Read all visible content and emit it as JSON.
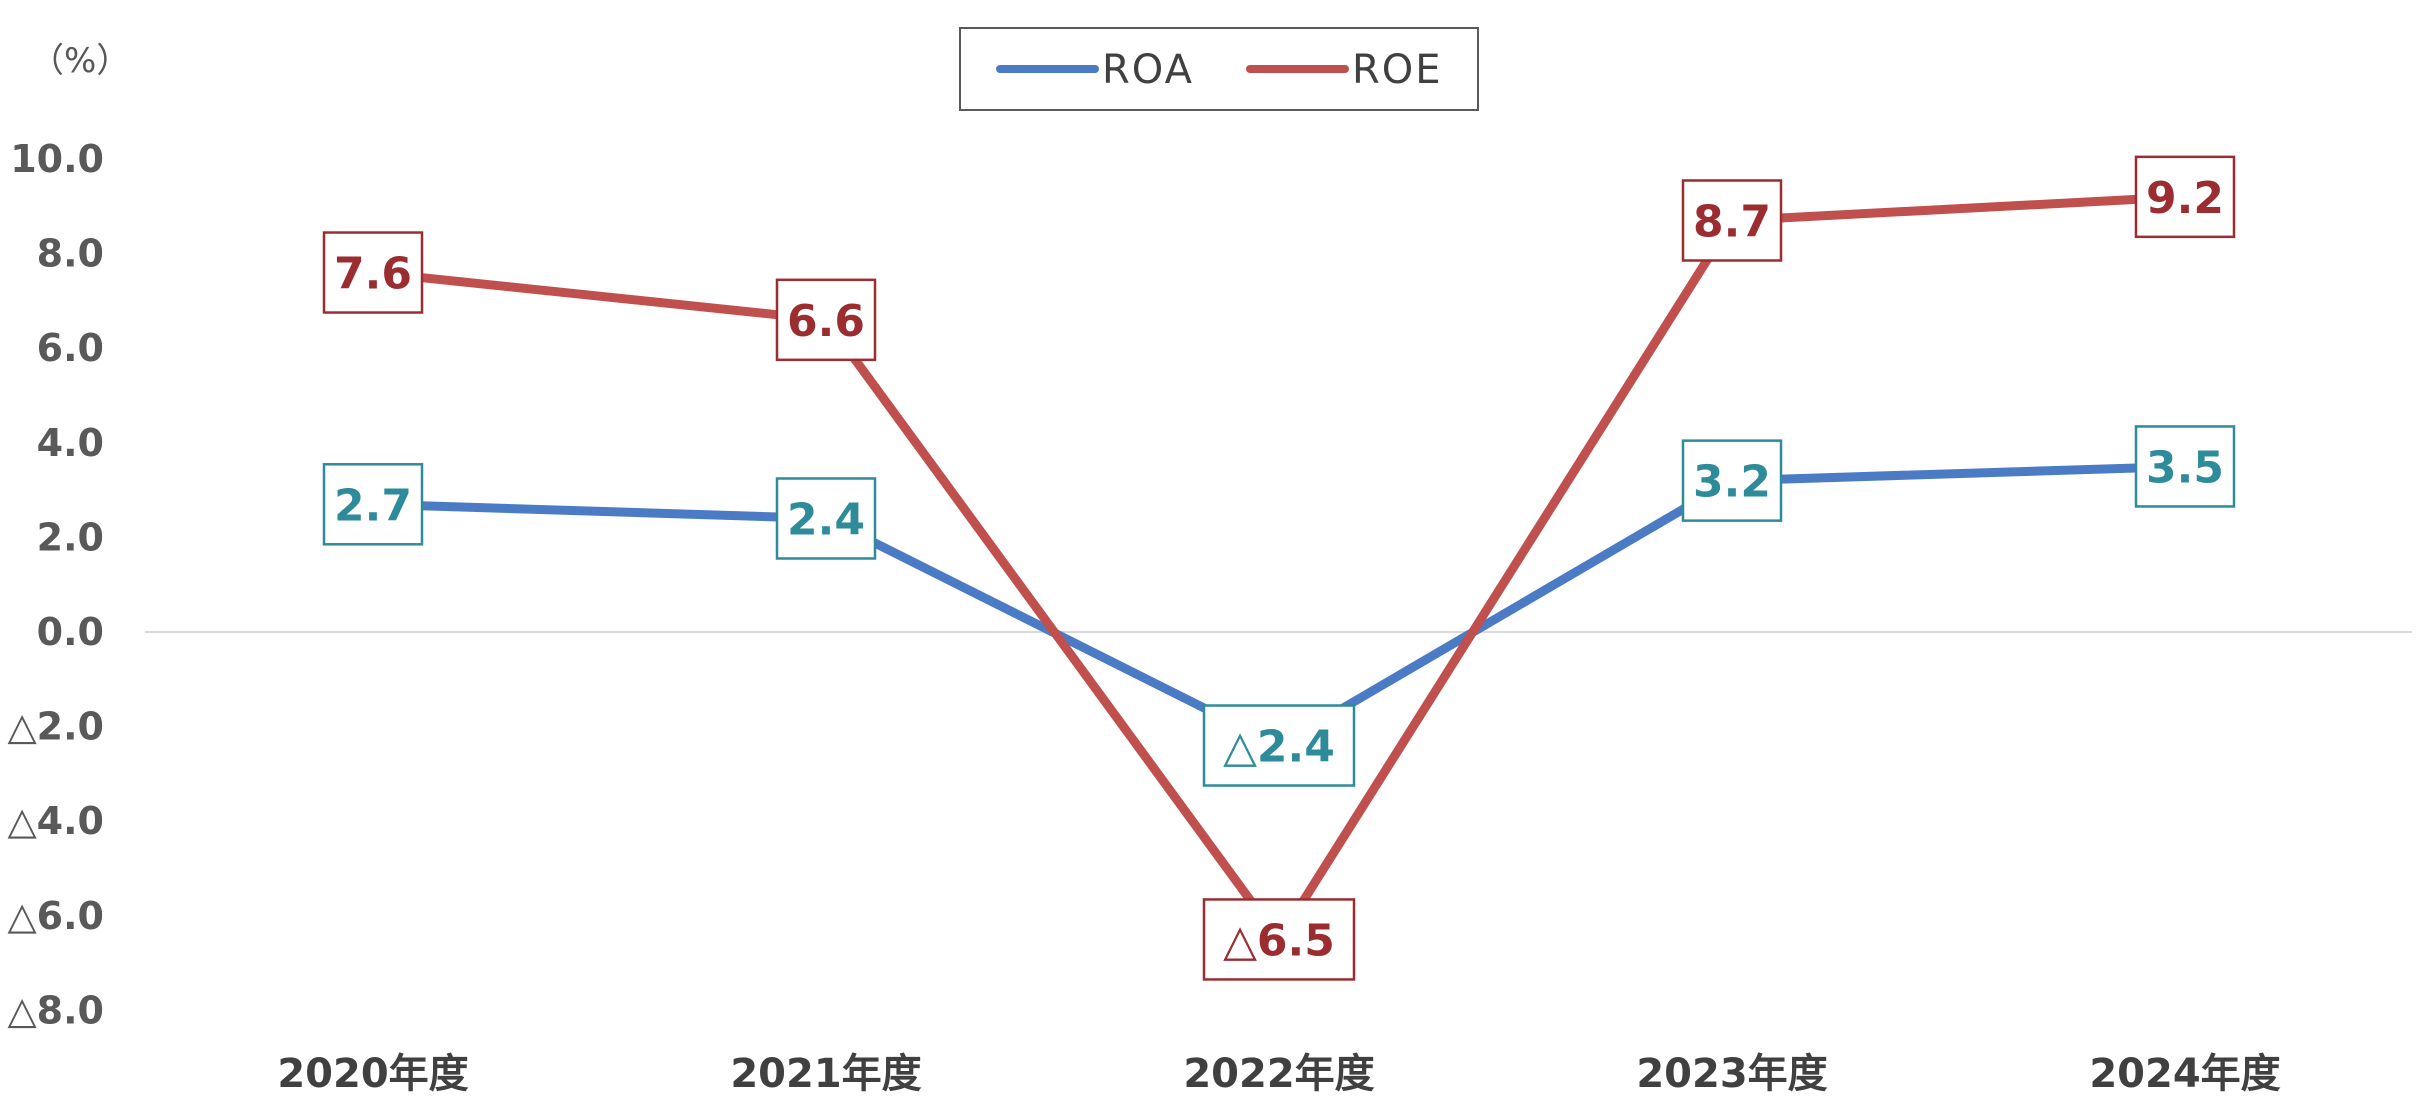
{
  "chart_data": {
    "type": "line",
    "unit_label": "（%）",
    "categories": [
      "2020年度",
      "2021年度",
      "2022年度",
      "2023年度",
      "2024年度"
    ],
    "series": [
      {
        "name": "ROA",
        "values": [
          2.7,
          2.4,
          -2.4,
          3.2,
          3.5
        ],
        "labels": [
          "2.7",
          "2.4",
          "△2.4",
          "3.2",
          "3.5"
        ],
        "color": "#4a7bc4",
        "label_color": "#2e8b9a"
      },
      {
        "name": "ROE",
        "values": [
          7.6,
          6.6,
          -6.5,
          8.7,
          9.2
        ],
        "labels": [
          "7.6",
          "6.6",
          "△6.5",
          "8.7",
          "9.2"
        ],
        "color": "#c0504d",
        "label_color": "#9b2d30"
      }
    ],
    "y_ticks": [
      {
        "value": 10,
        "label": "10.0"
      },
      {
        "value": 8,
        "label": "8.0"
      },
      {
        "value": 6,
        "label": "6.0"
      },
      {
        "value": 4,
        "label": "4.0"
      },
      {
        "value": 2,
        "label": "2.0"
      },
      {
        "value": 0,
        "label": "0.0"
      },
      {
        "value": -2,
        "label": "△2.0"
      },
      {
        "value": -4,
        "label": "△4.0"
      },
      {
        "value": -6,
        "label": "△6.0"
      },
      {
        "value": -8,
        "label": "△8.0"
      }
    ],
    "ylim": [
      -8,
      10
    ],
    "grid": false,
    "zero_line": true,
    "legend_position": "top-center"
  }
}
